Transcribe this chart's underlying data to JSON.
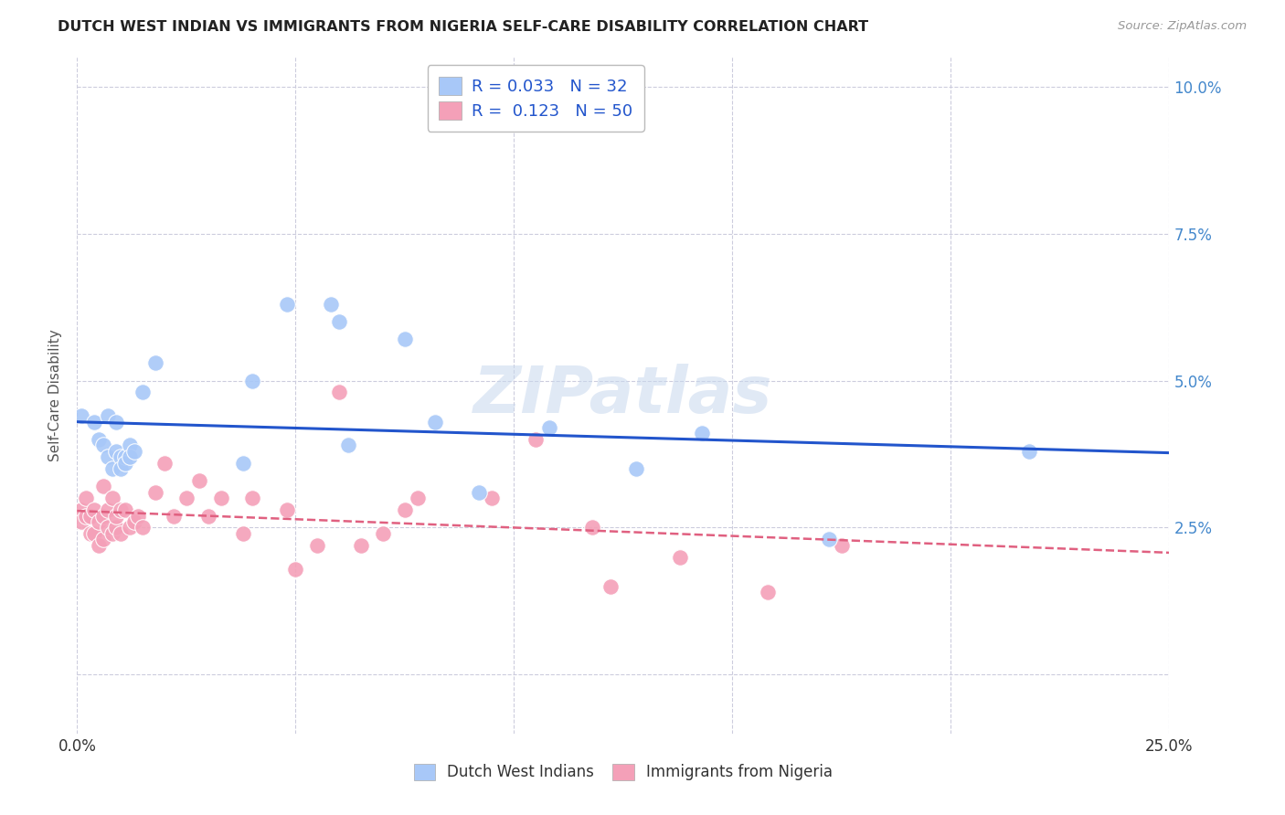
{
  "title": "DUTCH WEST INDIAN VS IMMIGRANTS FROM NIGERIA SELF-CARE DISABILITY CORRELATION CHART",
  "source": "Source: ZipAtlas.com",
  "ylabel": "Self-Care Disability",
  "xlim": [
    0.0,
    0.25
  ],
  "ylim": [
    -0.01,
    0.105
  ],
  "y_axis_min": 0.0,
  "y_axis_max": 0.1,
  "ytick_vals": [
    0.0,
    0.025,
    0.05,
    0.075,
    0.1
  ],
  "ytick_labels": [
    "",
    "2.5%",
    "5.0%",
    "7.5%",
    "10.0%"
  ],
  "xtick_vals": [
    0.0,
    0.05,
    0.1,
    0.15,
    0.2,
    0.25
  ],
  "xtick_labels": [
    "0.0%",
    "",
    "",
    "",
    "",
    "25.0%"
  ],
  "blue_R": 0.033,
  "blue_N": 32,
  "pink_R": 0.123,
  "pink_N": 50,
  "blue_color": "#a8c8f8",
  "pink_color": "#f4a0b8",
  "blue_line_color": "#2255cc",
  "pink_line_color": "#e06080",
  "watermark": "ZIPatlas",
  "grid_color": "#ccccdd",
  "background_color": "#ffffff",
  "blue_x": [
    0.001,
    0.004,
    0.005,
    0.006,
    0.007,
    0.007,
    0.008,
    0.009,
    0.009,
    0.01,
    0.01,
    0.011,
    0.011,
    0.012,
    0.012,
    0.013,
    0.015,
    0.018,
    0.038,
    0.04,
    0.048,
    0.058,
    0.06,
    0.062,
    0.075,
    0.082,
    0.092,
    0.108,
    0.128,
    0.143,
    0.172,
    0.218
  ],
  "blue_y": [
    0.044,
    0.043,
    0.04,
    0.039,
    0.044,
    0.037,
    0.035,
    0.043,
    0.038,
    0.037,
    0.035,
    0.037,
    0.036,
    0.039,
    0.037,
    0.038,
    0.048,
    0.053,
    0.036,
    0.05,
    0.063,
    0.063,
    0.06,
    0.039,
    0.057,
    0.043,
    0.031,
    0.042,
    0.035,
    0.041,
    0.023,
    0.038
  ],
  "pink_x": [
    0.001,
    0.001,
    0.002,
    0.002,
    0.003,
    0.003,
    0.004,
    0.004,
    0.005,
    0.005,
    0.006,
    0.006,
    0.006,
    0.007,
    0.007,
    0.008,
    0.008,
    0.009,
    0.009,
    0.01,
    0.01,
    0.011,
    0.012,
    0.013,
    0.014,
    0.015,
    0.018,
    0.02,
    0.022,
    0.025,
    0.028,
    0.03,
    0.033,
    0.038,
    0.04,
    0.048,
    0.05,
    0.055,
    0.06,
    0.065,
    0.07,
    0.075,
    0.078,
    0.095,
    0.105,
    0.118,
    0.122,
    0.138,
    0.158,
    0.175
  ],
  "pink_y": [
    0.028,
    0.026,
    0.03,
    0.027,
    0.027,
    0.024,
    0.028,
    0.024,
    0.026,
    0.022,
    0.027,
    0.023,
    0.032,
    0.028,
    0.025,
    0.024,
    0.03,
    0.025,
    0.027,
    0.028,
    0.024,
    0.028,
    0.025,
    0.026,
    0.027,
    0.025,
    0.031,
    0.036,
    0.027,
    0.03,
    0.033,
    0.027,
    0.03,
    0.024,
    0.03,
    0.028,
    0.018,
    0.022,
    0.048,
    0.022,
    0.024,
    0.028,
    0.03,
    0.03,
    0.04,
    0.025,
    0.015,
    0.02,
    0.014,
    0.022
  ]
}
